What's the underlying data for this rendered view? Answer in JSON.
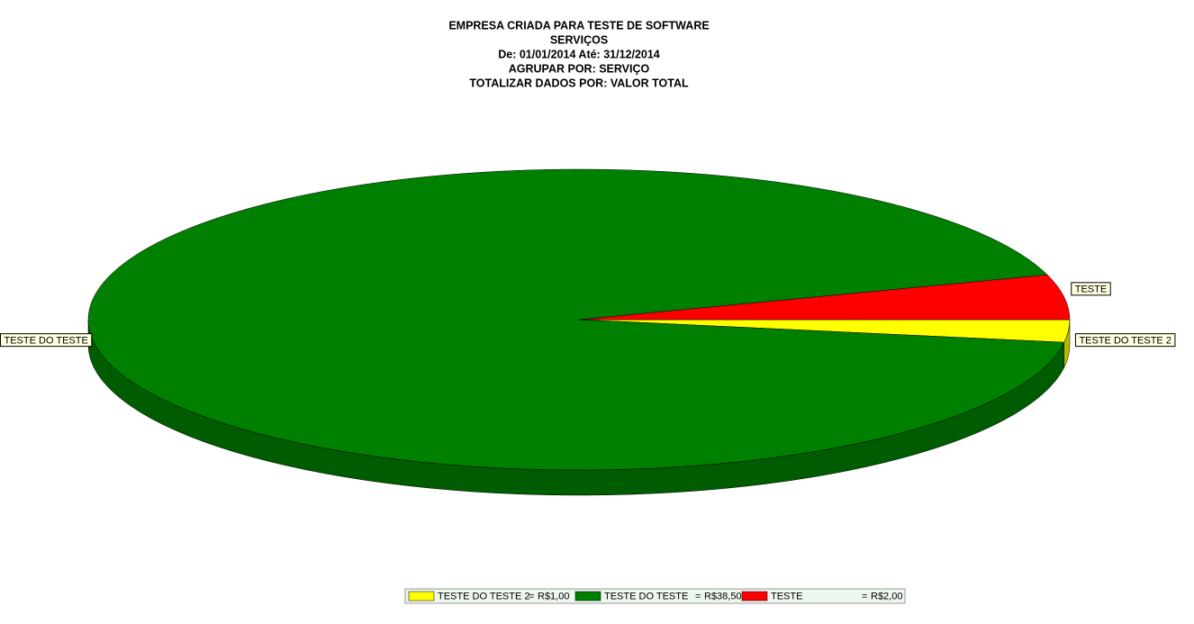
{
  "chart_data": {
    "type": "pie",
    "title": "EMPRESA CRIADA PARA TESTE DE SOFTWARE",
    "subtitles": [
      "SERVIÇOS",
      "De: 01/01/2014 Até: 31/12/2014",
      "AGRUPAR POR: SERVIÇO",
      "TOTALIZAR DADOS POR: VALOR TOTAL"
    ],
    "categories": [
      "TESTE DO TESTE 2",
      "TESTE DO TESTE",
      "TESTE"
    ],
    "values": [
      1,
      38.5,
      2
    ],
    "value_labels": [
      "R$1,00",
      "R$38,50",
      "R$2,00"
    ],
    "legend_separator": "=",
    "colors": [
      "#ffff00",
      "#008000",
      "#ff0000"
    ],
    "legend": "bottom"
  }
}
